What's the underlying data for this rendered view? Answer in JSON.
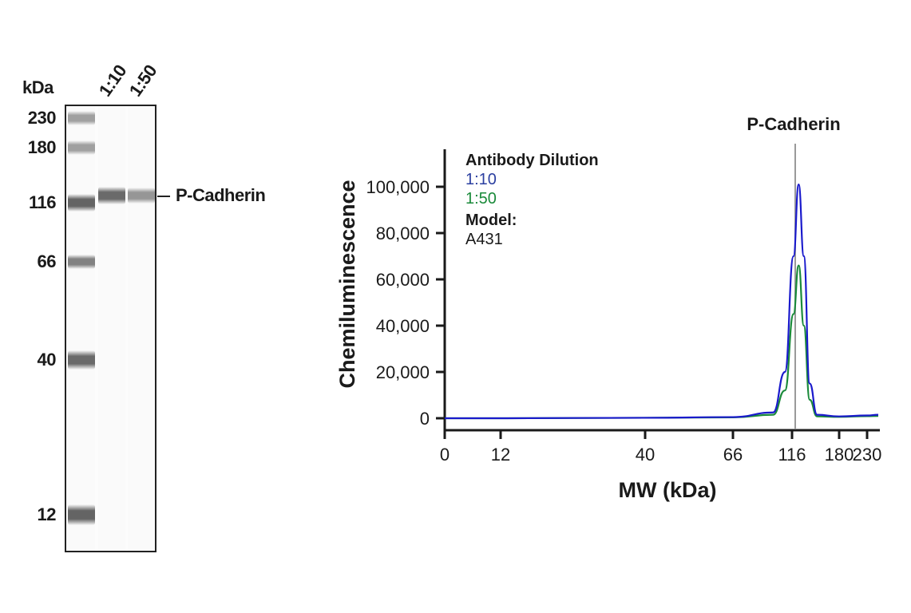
{
  "gel": {
    "unit_label": "kDa",
    "lanes": [
      {
        "label": "1:10"
      },
      {
        "label": "1:50"
      }
    ],
    "ladder": [
      {
        "label": "230",
        "y": 148,
        "intensity": 0.45,
        "h": 10
      },
      {
        "label": "180",
        "y": 185,
        "intensity": 0.45,
        "h": 10
      },
      {
        "label": "116",
        "y": 254,
        "intensity": 0.75,
        "h": 14
      },
      {
        "label": "66",
        "y": 328,
        "intensity": 0.6,
        "h": 10
      },
      {
        "label": "40",
        "y": 451,
        "intensity": 0.72,
        "h": 16
      },
      {
        "label": "12",
        "y": 645,
        "intensity": 0.75,
        "h": 18
      }
    ],
    "sample_bands": [
      {
        "lane": 1,
        "y": 245,
        "intensity": 0.72,
        "h": 14
      },
      {
        "lane": 2,
        "y": 245,
        "intensity": 0.5,
        "h": 12
      }
    ],
    "target_label": "P-Cadherin"
  },
  "chart_data": {
    "type": "line",
    "title": "P-Cadherin",
    "xlabel": "MW (kDa)",
    "ylabel": "Chemiluminescence",
    "x_ticks": [
      "0",
      "12",
      "40",
      "66",
      "116",
      "180",
      "230"
    ],
    "y_ticks": [
      "0",
      "20,000",
      "40,000",
      "60,000",
      "80,000",
      "100,000"
    ],
    "ylim": [
      0,
      110000
    ],
    "x_scale": "nonlinear (MW ladder-calibrated)",
    "grid": false,
    "legend": {
      "title": "Antibody Dilution",
      "entries": [
        {
          "name": "1:10",
          "color": "#2b3fa0"
        },
        {
          "name": "1:50",
          "color": "#1a8a3a"
        }
      ],
      "model_title": "Model:",
      "model_value": "A431",
      "position": "upper-left"
    },
    "annotation": {
      "label": "P-Cadherin",
      "x_kda": 125,
      "color": "#999999"
    },
    "series": [
      {
        "name": "1:10",
        "color": "#1a1acc",
        "points_kda": [
          [
            0,
            0
          ],
          [
            12,
            0
          ],
          [
            40,
            200
          ],
          [
            66,
            500
          ],
          [
            100,
            2500
          ],
          [
            110,
            20000
          ],
          [
            118,
            70000
          ],
          [
            125,
            101000
          ],
          [
            132,
            70000
          ],
          [
            140,
            15000
          ],
          [
            150,
            1500
          ],
          [
            180,
            800
          ],
          [
            230,
            1200
          ],
          [
            260,
            1500
          ]
        ]
      },
      {
        "name": "1:50",
        "color": "#1a8a3a",
        "points_kda": [
          [
            0,
            0
          ],
          [
            12,
            0
          ],
          [
            40,
            200
          ],
          [
            66,
            400
          ],
          [
            100,
            1500
          ],
          [
            110,
            12000
          ],
          [
            118,
            45000
          ],
          [
            125,
            66000
          ],
          [
            132,
            40000
          ],
          [
            140,
            8000
          ],
          [
            150,
            800
          ],
          [
            180,
            600
          ],
          [
            230,
            900
          ],
          [
            260,
            1000
          ]
        ]
      }
    ],
    "peak_values": {
      "1:10": 101000,
      "1:50": 66000
    }
  }
}
